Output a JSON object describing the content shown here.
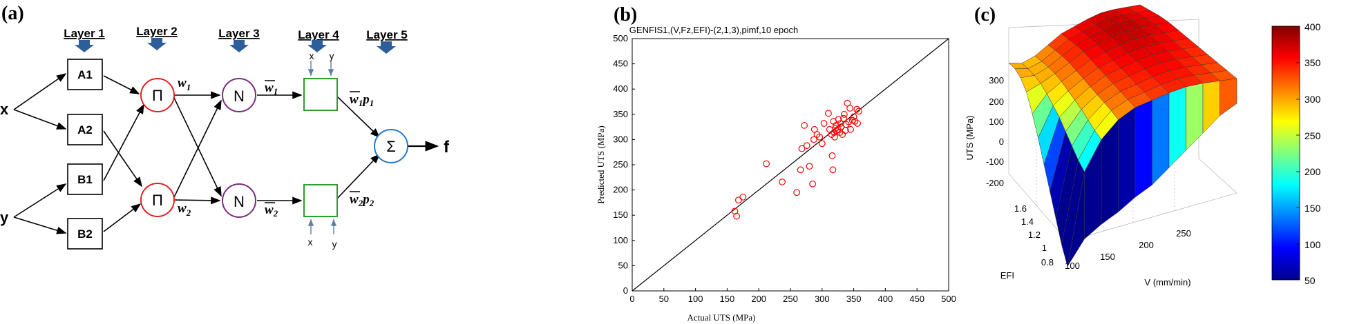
{
  "panel_a": {
    "panel_label": "(a)",
    "layers": [
      "Layer 1",
      "Layer 2",
      "Layer 3",
      "Layer 4",
      "Layer 5"
    ],
    "inputs": [
      "x",
      "y"
    ],
    "output": "f",
    "nodes": {
      "a1": "A1",
      "a2": "A2",
      "b1": "B1",
      "b2": "B2",
      "prod": "Π",
      "norm": "N",
      "sum": "Σ"
    },
    "weights": {
      "w1": "w",
      "w1_sub": "1",
      "w2": "w",
      "w2_sub": "2"
    },
    "normalized": {
      "w1": "w",
      "w1_sub": "1",
      "w2": "w",
      "w2_sub": "2"
    },
    "consequent": {
      "c1_w": "w",
      "c1_wsub": "1",
      "c1_p": "p",
      "c1_psub": "1",
      "c2_w": "w",
      "c2_wsub": "2",
      "c2_p": "p",
      "c2_psub": "2"
    },
    "layer4_inputs": [
      "x",
      "y"
    ]
  },
  "panel_b": {
    "panel_label": "(b)",
    "title": "GENFIS1,(V,Fz,EFI)-(2,1,3),pimf,10 epoch",
    "xlabel": "Actual UTS (MPa)",
    "ylabel": "Predicted UTS (MPa)"
  },
  "panel_c": {
    "panel_label": "(c)",
    "zlabel": "UTS (MPa)",
    "xlabel": "V (mm/min)",
    "ylabel": "EFI",
    "z_ticks": [
      "300",
      "200",
      "100",
      "0",
      "-100",
      "-200"
    ],
    "v_ticks": [
      "100",
      "150",
      "200",
      "250"
    ],
    "efi_ticks": [
      "1.6",
      "1.4",
      "1.2",
      "1",
      "0.8"
    ],
    "colorbar_ticks": [
      "400",
      "350",
      "300",
      "250",
      "200",
      "150",
      "100",
      "50"
    ],
    "colormap_colors": [
      "#00008f",
      "#0000ff",
      "#00ffff",
      "#ffff00",
      "#ff0000",
      "#800000"
    ]
  },
  "chart_data": [
    {
      "type": "scatter",
      "title": "GENFIS1,(V,Fz,EFI)-(2,1,3),pimf,10 epoch",
      "xlabel": "Actual UTS (MPa)",
      "ylabel": "Predicted UTS (MPa)",
      "xlim": [
        0,
        500
      ],
      "ylim": [
        0,
        500
      ],
      "xticks": [
        0,
        50,
        100,
        150,
        200,
        250,
        300,
        350,
        400,
        450,
        500
      ],
      "yticks": [
        0,
        50,
        100,
        150,
        200,
        250,
        300,
        350,
        400,
        450,
        500
      ],
      "grid": false,
      "reference_line": [
        [
          0,
          0
        ],
        [
          500,
          500
        ]
      ],
      "marker_color": "#ff0000",
      "line_color": "#000000",
      "points": [
        [
          162,
          158
        ],
        [
          165,
          148
        ],
        [
          168,
          180
        ],
        [
          175,
          186
        ],
        [
          212,
          252
        ],
        [
          237,
          216
        ],
        [
          260,
          195
        ],
        [
          266,
          240
        ],
        [
          268,
          282
        ],
        [
          272,
          328
        ],
        [
          276,
          288
        ],
        [
          280,
          247
        ],
        [
          285,
          212
        ],
        [
          287,
          300
        ],
        [
          288,
          320
        ],
        [
          292,
          310
        ],
        [
          296,
          305
        ],
        [
          300,
          292
        ],
        [
          303,
          332
        ],
        [
          310,
          352
        ],
        [
          312,
          320
        ],
        [
          315,
          310
        ],
        [
          316,
          268
        ],
        [
          317,
          240
        ],
        [
          318,
          336
        ],
        [
          320,
          305
        ],
        [
          322,
          328
        ],
        [
          323,
          318
        ],
        [
          325,
          320
        ],
        [
          326,
          340
        ],
        [
          328,
          314
        ],
        [
          330,
          325
        ],
        [
          332,
          310
        ],
        [
          334,
          342
        ],
        [
          335,
          350
        ],
        [
          338,
          330
        ],
        [
          340,
          372
        ],
        [
          342,
          335
        ],
        [
          344,
          362
        ],
        [
          345,
          320
        ],
        [
          348,
          338
        ],
        [
          350,
          345
        ],
        [
          352,
          336
        ],
        [
          355,
          360
        ],
        [
          356,
          332
        ],
        [
          358,
          356
        ],
        [
          319,
          314
        ],
        [
          321,
          322
        ],
        [
          329,
          332
        ],
        [
          337,
          318
        ]
      ]
    },
    {
      "type": "surface",
      "xlabel": "V (mm/min)",
      "ylabel": "EFI",
      "zlabel": "UTS (MPa)",
      "xlim": [
        80,
        280
      ],
      "ylim": [
        0.7,
        1.7
      ],
      "zlim": [
        -250,
        400
      ],
      "colorbar_range": [
        50,
        400
      ],
      "colorbar_ticks": [
        50,
        100,
        150,
        200,
        250,
        300,
        350,
        400
      ],
      "z_ticks": [
        -200,
        -100,
        0,
        100,
        200,
        300
      ],
      "v": [
        80,
        100,
        120,
        140,
        160,
        180,
        200,
        220,
        240,
        260,
        280
      ],
      "efi": [
        0.7,
        0.8,
        0.9,
        1.0,
        1.1,
        1.2,
        1.3,
        1.4,
        1.5,
        1.6,
        1.7
      ],
      "uts_rows_by_efi": [
        [
          -240,
          120,
          230,
          290,
          320,
          330,
          340,
          345,
          340,
          330,
          320
        ],
        [
          -180,
          140,
          240,
          300,
          325,
          335,
          345,
          350,
          345,
          335,
          325
        ],
        [
          -100,
          170,
          255,
          305,
          330,
          340,
          350,
          355,
          350,
          340,
          330
        ],
        [
          -20,
          200,
          270,
          310,
          335,
          345,
          355,
          360,
          355,
          345,
          335
        ],
        [
          60,
          230,
          280,
          315,
          340,
          350,
          360,
          365,
          360,
          350,
          340
        ],
        [
          140,
          250,
          290,
          320,
          345,
          355,
          365,
          370,
          365,
          355,
          345
        ],
        [
          210,
          270,
          300,
          325,
          350,
          360,
          370,
          375,
          370,
          360,
          350
        ],
        [
          270,
          285,
          305,
          330,
          355,
          365,
          375,
          380,
          375,
          365,
          355
        ],
        [
          300,
          290,
          305,
          330,
          355,
          365,
          375,
          380,
          375,
          365,
          355
        ],
        [
          310,
          290,
          300,
          325,
          350,
          360,
          370,
          375,
          370,
          360,
          350
        ],
        [
          305,
          285,
          295,
          320,
          345,
          355,
          365,
          370,
          365,
          355,
          345
        ]
      ],
      "front_face_uts_by_v": [
        -240,
        -150,
        -110,
        -80,
        -40,
        -10,
        40,
        90,
        140,
        190,
        220
      ]
    }
  ]
}
